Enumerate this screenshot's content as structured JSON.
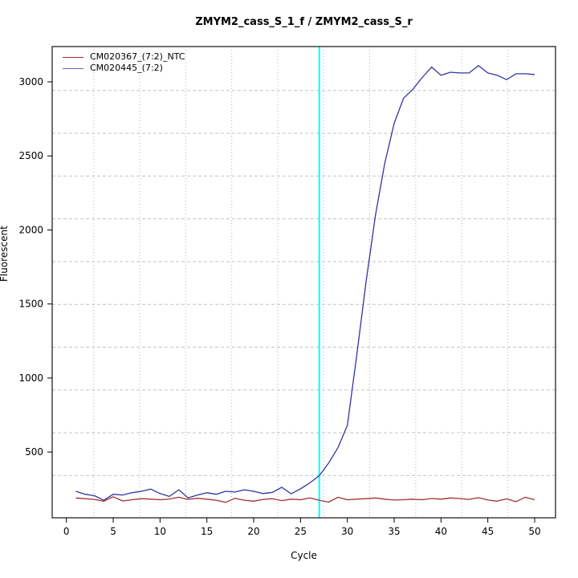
{
  "title": "ZMYM2_cass_S_1_f / ZMYM2_cass_S_r",
  "x_axis": {
    "label": "Cycle",
    "ticks": [
      0,
      5,
      10,
      15,
      20,
      25,
      30,
      35,
      40,
      45,
      50
    ]
  },
  "y_axis": {
    "label": "Fluorescent",
    "ticks": [
      500,
      1000,
      1500,
      2000,
      2500,
      3000
    ]
  },
  "legend": {
    "items": [
      {
        "label": "CM020367_(7:2)_NTC",
        "color": "#A03232"
      },
      {
        "label": "CM020445_(7:2)",
        "color": "#6666B8"
      }
    ]
  },
  "chart_data": {
    "type": "line",
    "title": "ZMYM2_cass_S_1_f / ZMYM2_cass_S_r",
    "xlabel": "Cycle",
    "ylabel": "Fluorescent",
    "xlim": [
      -1.5,
      52.2
    ],
    "ylim": [
      56,
      3239
    ],
    "grid": true,
    "legend_position": "top-left",
    "threshold_line": {
      "cycle": 27,
      "color": "#00FFFF"
    },
    "x": [
      1,
      2,
      3,
      4,
      5,
      6,
      7,
      8,
      9,
      10,
      11,
      12,
      13,
      14,
      15,
      16,
      17,
      18,
      19,
      20,
      21,
      22,
      23,
      24,
      25,
      26,
      27,
      28,
      29,
      30,
      31,
      32,
      33,
      34,
      35,
      36,
      37,
      38,
      39,
      40,
      41,
      42,
      43,
      44,
      45,
      46,
      47,
      48,
      49,
      50
    ],
    "series": [
      {
        "name": "CM020367_(7:2)_NTC",
        "color": "#A03232",
        "values": [
          190,
          185,
          180,
          168,
          198,
          170,
          178,
          185,
          182,
          178,
          183,
          195,
          180,
          188,
          182,
          175,
          160,
          188,
          175,
          168,
          180,
          185,
          172,
          182,
          178,
          190,
          175,
          162,
          195,
          178,
          182,
          185,
          190,
          182,
          176,
          178,
          182,
          178,
          186,
          182,
          190,
          186,
          180,
          192,
          176,
          168,
          184,
          165,
          195,
          178
        ]
      },
      {
        "name": "CM020445_(7:2)",
        "color": "#3333A3",
        "values": [
          235,
          215,
          205,
          175,
          215,
          210,
          225,
          235,
          250,
          220,
          200,
          245,
          190,
          210,
          225,
          215,
          235,
          230,
          245,
          235,
          220,
          228,
          262,
          218,
          252,
          292,
          340,
          425,
          530,
          680,
          1150,
          1650,
          2100,
          2450,
          2720,
          2890,
          2950,
          3030,
          3100,
          3045,
          3065,
          3060,
          3060,
          3110,
          3060,
          3045,
          3015,
          3055,
          3055,
          3050
        ]
      }
    ]
  }
}
